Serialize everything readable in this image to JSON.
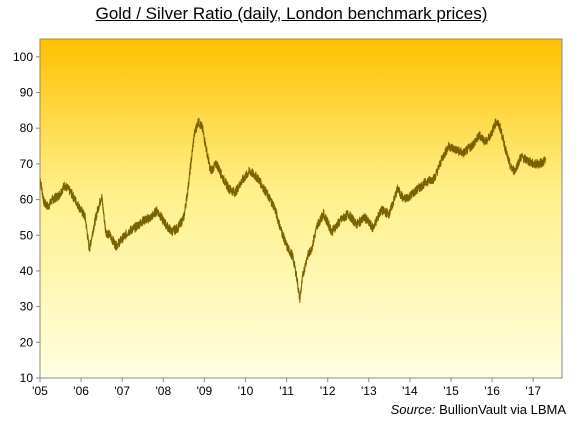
{
  "chart_data": {
    "type": "line",
    "title": "Gold / Silver Ratio (daily, London benchmark prices)",
    "xlabel": "",
    "ylabel": "",
    "ylim": [
      10,
      105
    ],
    "xlim": [
      2005.0,
      2017.7
    ],
    "y_ticks": [
      10,
      20,
      30,
      40,
      50,
      60,
      70,
      80,
      90,
      100
    ],
    "x_ticks": [
      {
        "value": 2005,
        "label": "'05"
      },
      {
        "value": 2006,
        "label": "'06"
      },
      {
        "value": 2007,
        "label": "'07"
      },
      {
        "value": 2008,
        "label": "'08"
      },
      {
        "value": 2009,
        "label": "'09"
      },
      {
        "value": 2010,
        "label": "'10"
      },
      {
        "value": 2011,
        "label": "'11"
      },
      {
        "value": 2012,
        "label": "'12"
      },
      {
        "value": 2013,
        "label": "'13"
      },
      {
        "value": 2014,
        "label": "'14"
      },
      {
        "value": 2015,
        "label": "'15"
      },
      {
        "value": 2016,
        "label": "'16"
      },
      {
        "value": 2017,
        "label": "'17"
      }
    ],
    "grid": false,
    "legend": "none",
    "series": [
      {
        "color": "#7a6200",
        "x": [
          2005.0,
          2005.1,
          2005.2,
          2005.3,
          2005.45,
          2005.6,
          2005.75,
          2005.9,
          2006.0,
          2006.1,
          2006.2,
          2006.3,
          2006.4,
          2006.5,
          2006.6,
          2006.7,
          2006.85,
          2007.0,
          2007.15,
          2007.3,
          2007.5,
          2007.7,
          2007.85,
          2008.0,
          2008.2,
          2008.35,
          2008.5,
          2008.6,
          2008.75,
          2008.85,
          2008.95,
          2009.05,
          2009.15,
          2009.3,
          2009.45,
          2009.6,
          2009.75,
          2009.9,
          2010.1,
          2010.3,
          2010.5,
          2010.7,
          2010.85,
          2011.0,
          2011.15,
          2011.25,
          2011.32,
          2011.4,
          2011.5,
          2011.6,
          2011.75,
          2011.9,
          2012.1,
          2012.3,
          2012.5,
          2012.7,
          2012.9,
          2013.1,
          2013.3,
          2013.5,
          2013.7,
          2013.85,
          2014.0,
          2014.2,
          2014.4,
          2014.6,
          2014.8,
          2014.95,
          2015.1,
          2015.3,
          2015.5,
          2015.7,
          2015.85,
          2016.0,
          2016.1,
          2016.2,
          2016.35,
          2016.45,
          2016.55,
          2016.7,
          2016.85,
          2017.0,
          2017.15,
          2017.3
        ],
        "y": [
          66,
          59,
          58,
          60,
          61,
          64,
          62,
          59,
          57,
          55,
          46,
          52,
          57,
          61,
          51,
          50,
          47,
          49,
          51,
          52,
          54,
          55,
          57,
          54,
          51,
          52,
          55,
          63,
          78,
          82,
          80,
          74,
          68,
          70,
          66,
          63,
          62,
          65,
          68,
          66,
          62,
          58,
          52,
          47,
          44,
          38,
          32,
          39,
          44,
          46,
          53,
          56,
          51,
          54,
          56,
          53,
          55,
          52,
          57,
          56,
          63,
          60,
          61,
          63,
          65,
          66,
          72,
          75,
          74,
          73,
          75,
          78,
          76,
          79,
          82,
          80,
          73,
          69,
          68,
          72,
          71,
          70,
          70,
          71
        ]
      }
    ]
  },
  "source": {
    "label": "Source:",
    "text": "BullionVault via LBMA"
  }
}
